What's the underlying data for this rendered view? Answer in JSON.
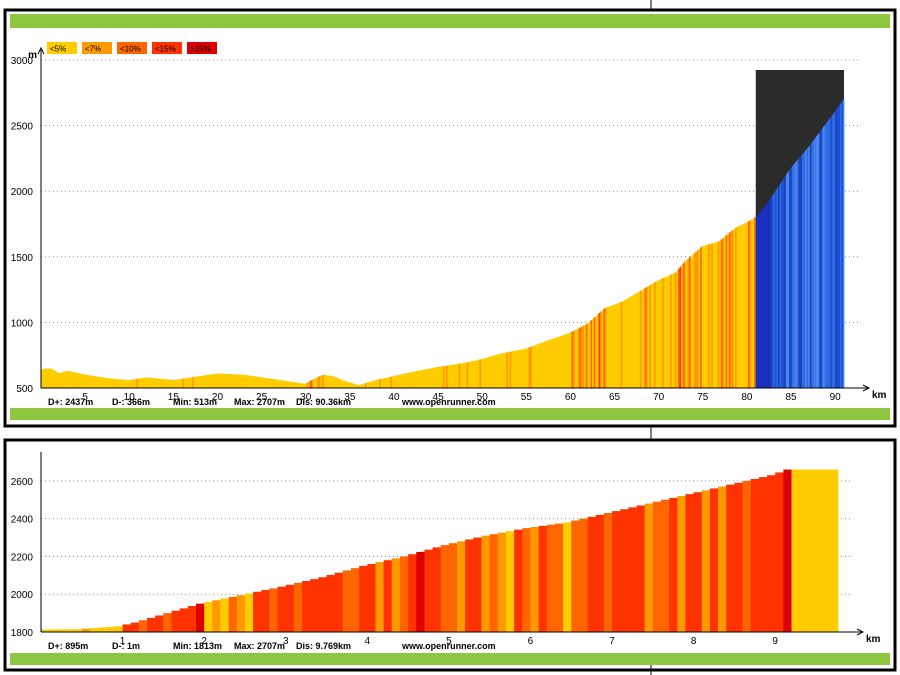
{
  "chart_data": [
    {
      "type": "area",
      "name": "overview-profile",
      "xunit": "km",
      "yunit": "m",
      "xlim": [
        0,
        91
      ],
      "ylim": [
        500,
        3000
      ],
      "x_ticks": [
        5,
        10,
        15,
        20,
        25,
        30,
        35,
        40,
        45,
        50,
        55,
        60,
        65,
        70,
        75,
        80,
        85,
        90
      ],
      "y_ticks": [
        500,
        1000,
        1500,
        2000,
        2500,
        3000
      ],
      "grid": "horizontal-dotted",
      "gradient_legend": [
        "<5%",
        "<7%",
        "<10%",
        "<15%",
        ">15%"
      ],
      "gradient_colors": [
        "#ffcc00",
        "#ff9900",
        "#ff6600",
        "#ff3300",
        "#dd0000"
      ],
      "selection_color": "#1a4fd6",
      "selection_range_km": [
        81,
        91
      ],
      "elevation_profile": {
        "x": [
          0,
          1,
          2,
          3,
          5,
          8,
          10,
          12,
          15,
          18,
          20,
          23,
          25,
          28,
          30,
          31,
          32,
          33,
          34,
          36,
          38,
          40,
          42,
          45,
          48,
          50,
          52,
          55,
          57,
          60,
          62,
          64,
          66,
          68,
          70,
          72,
          73,
          74,
          75,
          76,
          77,
          78,
          79,
          80,
          81,
          82,
          83,
          84,
          85,
          86,
          87,
          88,
          89,
          90,
          91
        ],
        "y": [
          640,
          650,
          610,
          630,
          600,
          570,
          560,
          580,
          560,
          590,
          610,
          600,
          580,
          550,
          530,
          570,
          600,
          590,
          560,
          520,
          560,
          590,
          620,
          660,
          690,
          720,
          760,
          800,
          850,
          920,
          990,
          1110,
          1160,
          1240,
          1320,
          1380,
          1460,
          1520,
          1580,
          1600,
          1620,
          1680,
          1730,
          1760,
          1800,
          1880,
          1980,
          2080,
          2180,
          2260,
          2340,
          2430,
          2520,
          2610,
          2707
        ]
      },
      "stats": {
        "d_plus": "D+: 2437m",
        "d_minus": "D-: 366m",
        "min": "Min: 513m",
        "max": "Max: 2707m",
        "dist": "Dis: 90.36km"
      },
      "credit": "www.openrunner.com"
    },
    {
      "type": "area",
      "name": "climb-detail",
      "xunit": "km",
      "xlim": [
        0,
        9.77
      ],
      "ylim": [
        1800,
        2700
      ],
      "x_ticks": [
        1,
        2,
        3,
        4,
        5,
        6,
        7,
        8,
        9
      ],
      "y_ticks": [
        1800,
        2000,
        2200,
        2400,
        2600
      ],
      "grid": "horizontal-dotted",
      "elevation_profile": {
        "x": [
          0,
          0.5,
          1.0,
          1.2,
          1.6,
          2.0,
          2.5,
          3.0,
          3.5,
          4.0,
          4.5,
          5.0,
          5.5,
          6.0,
          6.5,
          7.0,
          7.5,
          8.0,
          8.5,
          9.0,
          9.2,
          9.77
        ],
        "y": [
          1813,
          1815,
          1830,
          1850,
          1900,
          1950,
          1995,
          2040,
          2090,
          2150,
          2200,
          2260,
          2310,
          2350,
          2380,
          2430,
          2480,
          2530,
          2580,
          2630,
          2660,
          2660
        ]
      },
      "stats": {
        "d_plus": "D+: 895m",
        "d_minus": "D-: 1m",
        "min": "Min: 1813m",
        "max": "Max: 2707m",
        "dist": "Dis: 9.769km"
      },
      "credit": "www.openrunner.com"
    }
  ]
}
